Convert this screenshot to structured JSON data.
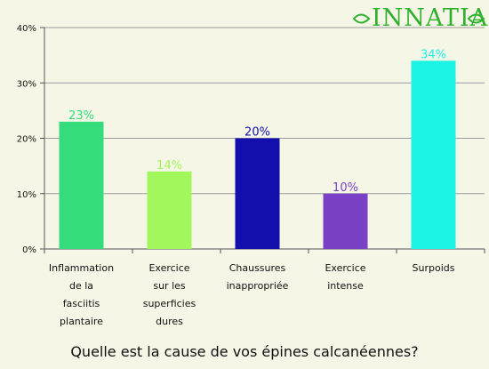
{
  "logo": {
    "text": "INNATIA"
  },
  "chart_data": {
    "type": "bar",
    "title": "Quelle est la cause de vos épines calcanéennes?",
    "categories": [
      "Inflammation de la fasciitis plantaire",
      "Exercice sur les superficies dures",
      "Chaussures inappropriée",
      "Exercice intense",
      "Surpoids"
    ],
    "category_lines": [
      [
        "Inflammation",
        "de la",
        "fasciitis",
        "plantaire"
      ],
      [
        "Exercice",
        "sur les",
        "superficies",
        "dures"
      ],
      [
        "Chaussures",
        "inappropriée"
      ],
      [
        "Exercice",
        "intense"
      ],
      [
        "Surpoids"
      ]
    ],
    "values": [
      23,
      14,
      20,
      10,
      34
    ],
    "data_labels": [
      "23%",
      "14%",
      "20%",
      "10%",
      "34%"
    ],
    "colors": [
      "#34dc7c",
      "#a2f75c",
      "#130fad",
      "#7a40c6",
      "#1bf4e4"
    ],
    "label_colors": [
      "#34dc7c",
      "#a2f75c",
      "#130fad",
      "#7a40c6",
      "#1bf4e4"
    ],
    "ylim": [
      0,
      40
    ],
    "yticks": [
      0,
      10,
      20,
      30,
      40
    ],
    "ytick_labels": [
      "0%",
      "10%",
      "20%",
      "30%",
      "40%"
    ],
    "grid": true,
    "legend": "none",
    "xlabel": "",
    "ylabel": ""
  }
}
